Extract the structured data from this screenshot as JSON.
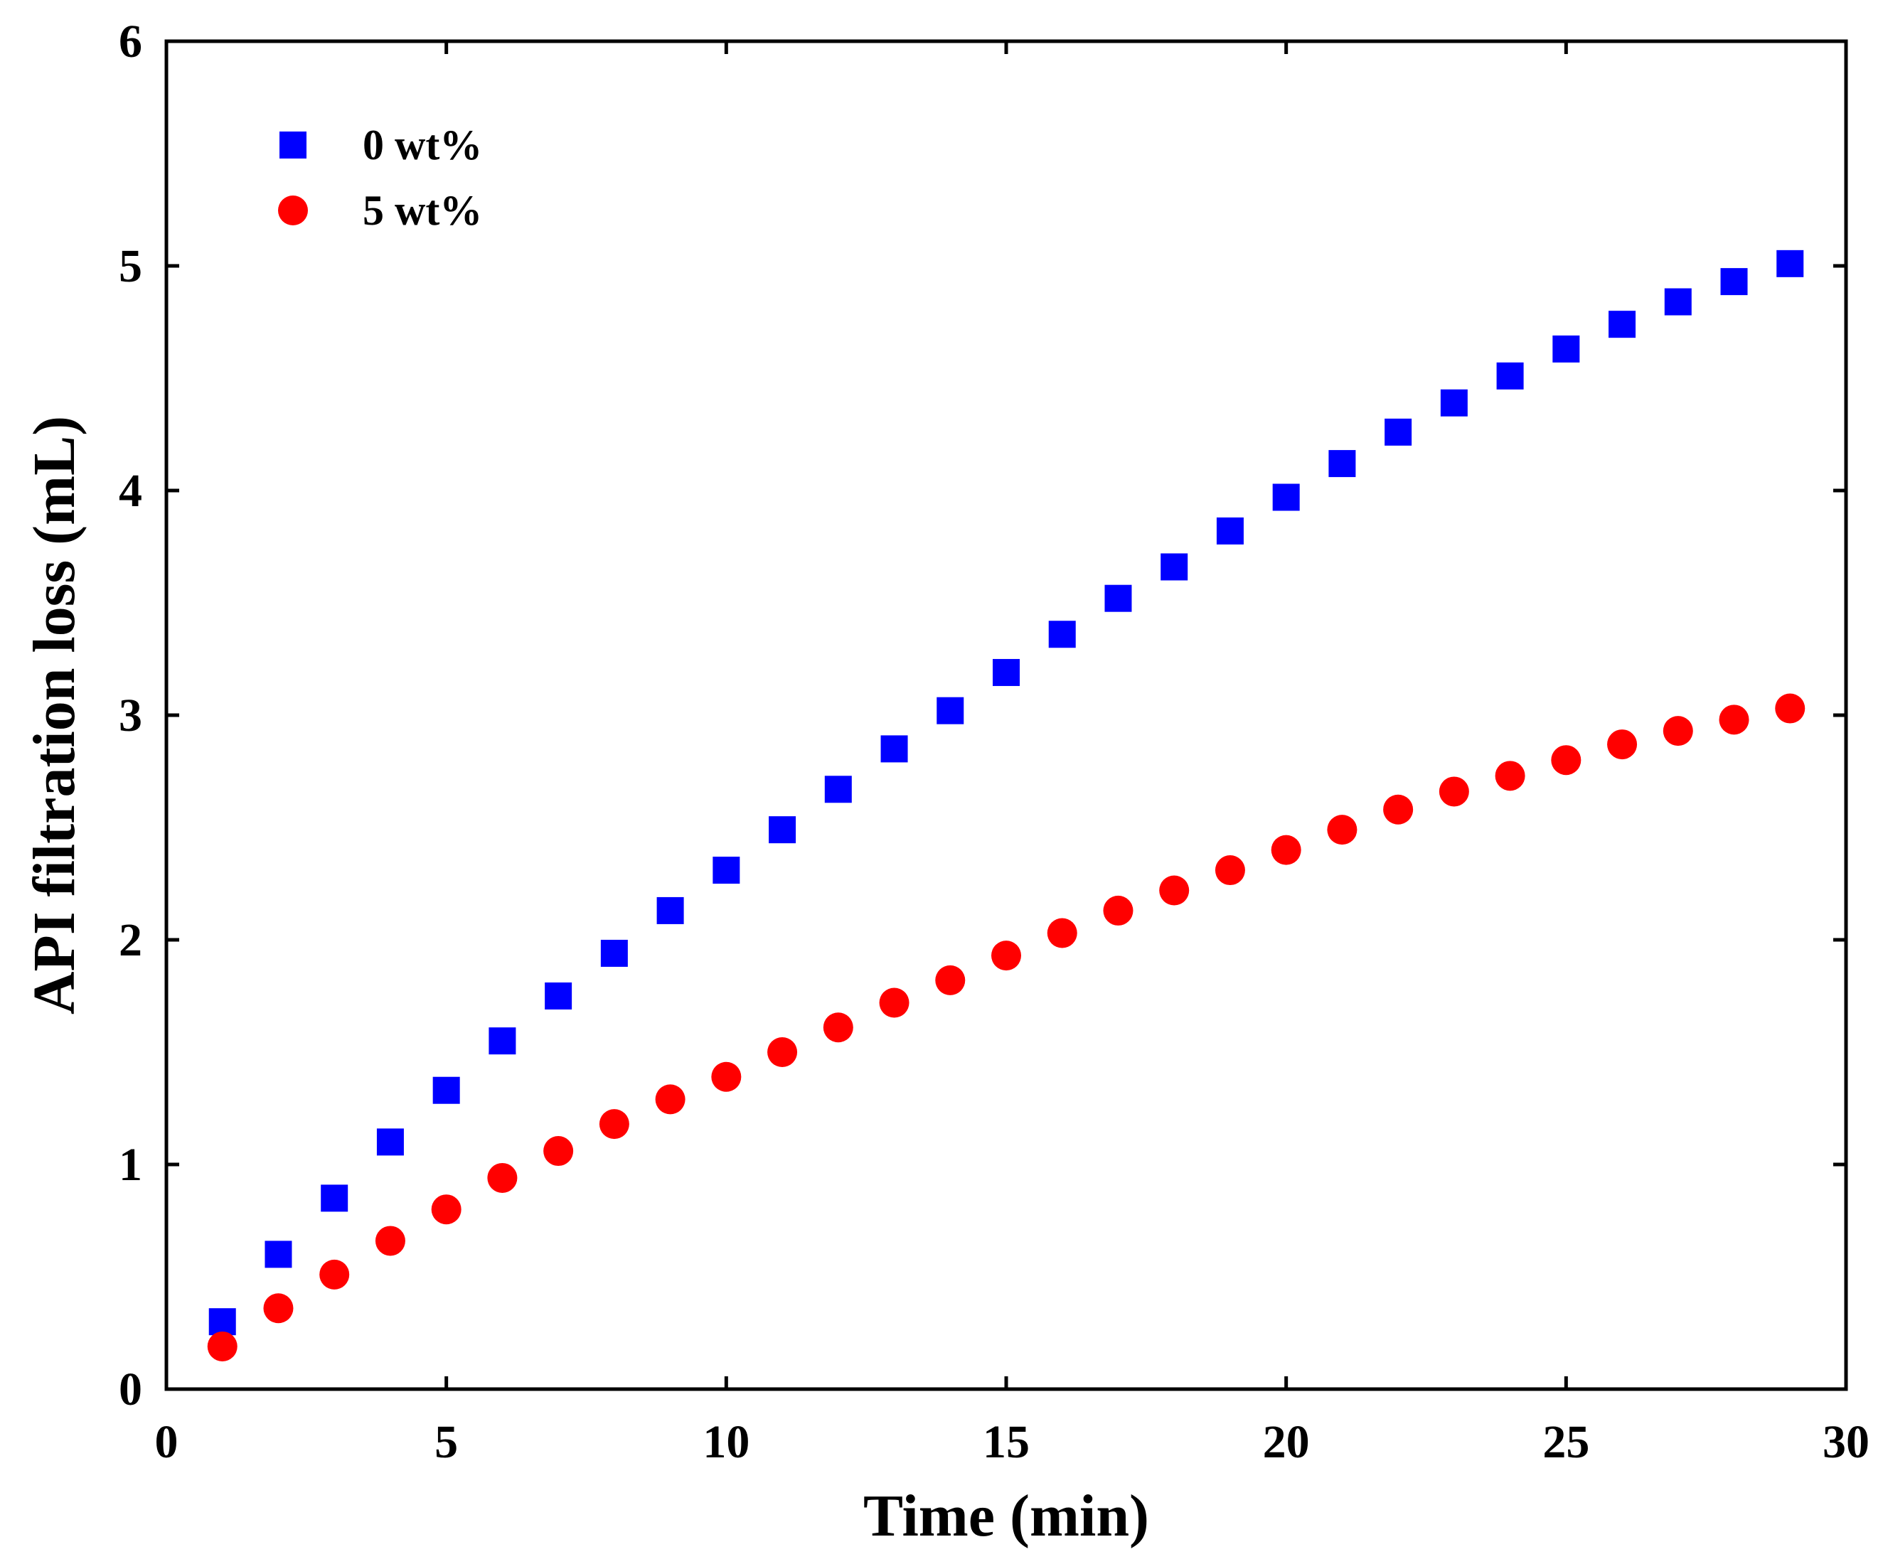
{
  "chart_data": {
    "type": "scatter",
    "title": "",
    "xlabel": "Time (min)",
    "ylabel": "API filtration loss (mL)",
    "xlim": [
      0,
      30
    ],
    "ylim": [
      0,
      6
    ],
    "xticks": [
      0,
      5,
      10,
      15,
      20,
      25,
      30
    ],
    "yticks": [
      0,
      1,
      2,
      3,
      4,
      5,
      6
    ],
    "grid": false,
    "legend_position": "top-left",
    "series": [
      {
        "name": "0 wt%",
        "marker": "square",
        "color": "#0000ff",
        "x": [
          1,
          2,
          3,
          4,
          5,
          6,
          7,
          8,
          9,
          10,
          11,
          12,
          13,
          14,
          15,
          16,
          17,
          18,
          19,
          20,
          21,
          22,
          23,
          24,
          25,
          26,
          27,
          28,
          29
        ],
        "y": [
          0.3,
          0.6,
          0.85,
          1.1,
          1.33,
          1.55,
          1.75,
          1.94,
          2.13,
          2.31,
          2.49,
          2.67,
          2.85,
          3.02,
          3.19,
          3.36,
          3.52,
          3.66,
          3.82,
          3.97,
          4.12,
          4.26,
          4.39,
          4.51,
          4.63,
          4.74,
          4.84,
          4.93,
          5.01
        ]
      },
      {
        "name": "5 wt%",
        "marker": "circle",
        "color": "#ff0000",
        "x": [
          1,
          2,
          3,
          4,
          5,
          6,
          7,
          8,
          9,
          10,
          11,
          12,
          13,
          14,
          15,
          16,
          17,
          18,
          19,
          20,
          21,
          22,
          23,
          24,
          25,
          26,
          27,
          28,
          29
        ],
        "y": [
          0.19,
          0.36,
          0.51,
          0.66,
          0.8,
          0.94,
          1.06,
          1.18,
          1.29,
          1.39,
          1.5,
          1.61,
          1.72,
          1.82,
          1.93,
          2.03,
          2.13,
          2.22,
          2.31,
          2.4,
          2.49,
          2.58,
          2.66,
          2.73,
          2.8,
          2.87,
          2.93,
          2.98,
          3.03
        ]
      }
    ]
  }
}
